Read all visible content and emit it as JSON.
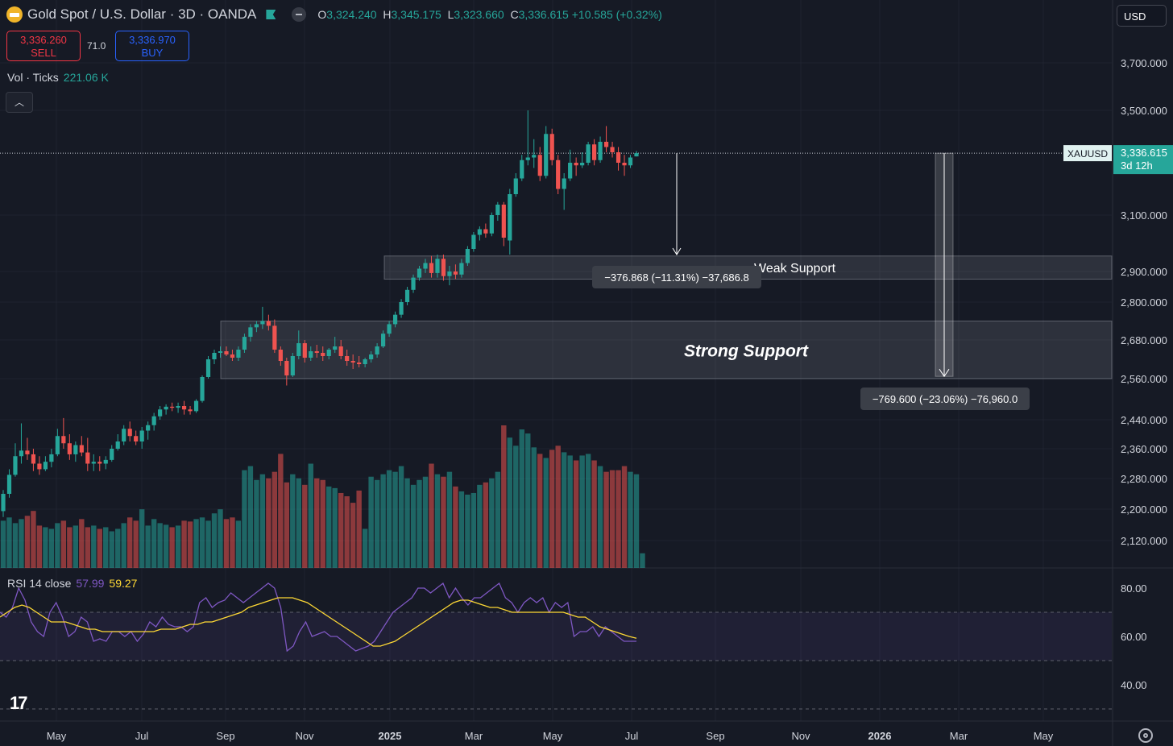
{
  "header": {
    "symbol": "Gold Spot",
    "quote": "U.S. Dollar",
    "interval": "3D",
    "exchange": "OANDA",
    "ohlc": {
      "o_label": "O",
      "o": "3,324.240",
      "h_label": "H",
      "h": "3,345.175",
      "l_label": "L",
      "l": "3,323.660",
      "c_label": "C",
      "c": "3,336.615",
      "change": "+10.585 (+0.32%)"
    }
  },
  "trade": {
    "sell_price": "3,336.260",
    "sell_label": "SELL",
    "buy_price": "3,336.970",
    "buy_label": "BUY",
    "spread": "71.0"
  },
  "volume": {
    "label": "Vol · Ticks",
    "value": "221.06 K"
  },
  "currency": "USD",
  "price_label": {
    "symbol": "XAUUSD",
    "price": "3,336.615",
    "countdown": "3d 12h"
  },
  "price_axis": [
    "3,700.000",
    "3,500.000",
    "3,100.000",
    "2,900.000",
    "2,800.000",
    "2,680.000",
    "2,560.000",
    "2,440.000",
    "2,360.000",
    "2,280.000",
    "2,200.000",
    "2,120.000"
  ],
  "time_axis": [
    "May",
    "Jul",
    "Sep",
    "Nov",
    "2025",
    "Mar",
    "May",
    "Jul",
    "Sep",
    "Nov",
    "2026",
    "Mar",
    "May"
  ],
  "zones": [
    {
      "label": "Weak Support",
      "low": 2875,
      "high": 2955
    },
    {
      "label": "Strong Support",
      "low": 2560,
      "high": 2740
    }
  ],
  "measures": [
    {
      "text": "−376.868 (−11.31%) −37,686.8",
      "from": 3336.6,
      "to": 2960
    },
    {
      "text": "−769.600 (−23.06%) −76,960.0",
      "from": 3336.6,
      "to": 2567
    }
  ],
  "rsi": {
    "label": "RSI 14 close",
    "value": "57.99",
    "ma": "59.27",
    "axis": [
      "80.00",
      "60.00",
      "40.00"
    ],
    "upper": 70,
    "lower": 50
  },
  "colors": {
    "up": "#26a69a",
    "down": "#ef5350",
    "rsi": "#7e57c2",
    "rsi_ma": "#fdd835",
    "accent": "#2962ff"
  },
  "chart_data": {
    "type": "candlestick",
    "candles": [
      {
        "o": 2195,
        "h": 2250,
        "l": 2180,
        "c": 2240
      },
      {
        "o": 2240,
        "h": 2305,
        "l": 2230,
        "c": 2290
      },
      {
        "o": 2290,
        "h": 2375,
        "l": 2285,
        "c": 2340
      },
      {
        "o": 2340,
        "h": 2430,
        "l": 2320,
        "c": 2355
      },
      {
        "o": 2355,
        "h": 2390,
        "l": 2330,
        "c": 2345
      },
      {
        "o": 2345,
        "h": 2360,
        "l": 2300,
        "c": 2320
      },
      {
        "o": 2320,
        "h": 2340,
        "l": 2290,
        "c": 2305
      },
      {
        "o": 2305,
        "h": 2340,
        "l": 2300,
        "c": 2325
      },
      {
        "o": 2325,
        "h": 2360,
        "l": 2310,
        "c": 2345
      },
      {
        "o": 2345,
        "h": 2415,
        "l": 2340,
        "c": 2395
      },
      {
        "o": 2395,
        "h": 2445,
        "l": 2360,
        "c": 2375
      },
      {
        "o": 2375,
        "h": 2400,
        "l": 2330,
        "c": 2345
      },
      {
        "o": 2345,
        "h": 2380,
        "l": 2325,
        "c": 2370
      },
      {
        "o": 2370,
        "h": 2395,
        "l": 2340,
        "c": 2350
      },
      {
        "o": 2350,
        "h": 2390,
        "l": 2300,
        "c": 2320
      },
      {
        "o": 2320,
        "h": 2345,
        "l": 2300,
        "c": 2325
      },
      {
        "o": 2325,
        "h": 2340,
        "l": 2300,
        "c": 2320
      },
      {
        "o": 2320,
        "h": 2340,
        "l": 2305,
        "c": 2330
      },
      {
        "o": 2330,
        "h": 2370,
        "l": 2325,
        "c": 2360
      },
      {
        "o": 2360,
        "h": 2400,
        "l": 2355,
        "c": 2380
      },
      {
        "o": 2380,
        "h": 2425,
        "l": 2370,
        "c": 2415
      },
      {
        "o": 2415,
        "h": 2435,
        "l": 2380,
        "c": 2395
      },
      {
        "o": 2395,
        "h": 2410,
        "l": 2370,
        "c": 2380
      },
      {
        "o": 2380,
        "h": 2420,
        "l": 2360,
        "c": 2410
      },
      {
        "o": 2410,
        "h": 2435,
        "l": 2385,
        "c": 2425
      },
      {
        "o": 2425,
        "h": 2460,
        "l": 2410,
        "c": 2450
      },
      {
        "o": 2450,
        "h": 2480,
        "l": 2440,
        "c": 2470
      },
      {
        "o": 2470,
        "h": 2485,
        "l": 2455,
        "c": 2478
      },
      {
        "o": 2478,
        "h": 2490,
        "l": 2465,
        "c": 2475
      },
      {
        "o": 2475,
        "h": 2490,
        "l": 2460,
        "c": 2480
      },
      {
        "o": 2480,
        "h": 2495,
        "l": 2455,
        "c": 2470
      },
      {
        "o": 2470,
        "h": 2480,
        "l": 2455,
        "c": 2465
      },
      {
        "o": 2465,
        "h": 2500,
        "l": 2460,
        "c": 2495
      },
      {
        "o": 2495,
        "h": 2570,
        "l": 2490,
        "c": 2565
      },
      {
        "o": 2565,
        "h": 2630,
        "l": 2560,
        "c": 2620
      },
      {
        "o": 2620,
        "h": 2650,
        "l": 2605,
        "c": 2640
      },
      {
        "o": 2640,
        "h": 2660,
        "l": 2625,
        "c": 2645
      },
      {
        "o": 2645,
        "h": 2660,
        "l": 2630,
        "c": 2635
      },
      {
        "o": 2635,
        "h": 2650,
        "l": 2615,
        "c": 2625
      },
      {
        "o": 2625,
        "h": 2660,
        "l": 2615,
        "c": 2650
      },
      {
        "o": 2650,
        "h": 2700,
        "l": 2640,
        "c": 2690
      },
      {
        "o": 2690,
        "h": 2730,
        "l": 2675,
        "c": 2720
      },
      {
        "o": 2720,
        "h": 2740,
        "l": 2705,
        "c": 2730
      },
      {
        "o": 2730,
        "h": 2785,
        "l": 2715,
        "c": 2740
      },
      {
        "o": 2740,
        "h": 2760,
        "l": 2710,
        "c": 2725
      },
      {
        "o": 2725,
        "h": 2745,
        "l": 2640,
        "c": 2650
      },
      {
        "o": 2650,
        "h": 2660,
        "l": 2600,
        "c": 2615
      },
      {
        "o": 2615,
        "h": 2625,
        "l": 2540,
        "c": 2570
      },
      {
        "o": 2570,
        "h": 2640,
        "l": 2565,
        "c": 2630
      },
      {
        "o": 2630,
        "h": 2710,
        "l": 2620,
        "c": 2670
      },
      {
        "o": 2670,
        "h": 2680,
        "l": 2610,
        "c": 2625
      },
      {
        "o": 2625,
        "h": 2660,
        "l": 2615,
        "c": 2645
      },
      {
        "o": 2645,
        "h": 2665,
        "l": 2625,
        "c": 2640
      },
      {
        "o": 2640,
        "h": 2660,
        "l": 2615,
        "c": 2630
      },
      {
        "o": 2630,
        "h": 2655,
        "l": 2620,
        "c": 2650
      },
      {
        "o": 2650,
        "h": 2690,
        "l": 2640,
        "c": 2660
      },
      {
        "o": 2660,
        "h": 2680,
        "l": 2620,
        "c": 2630
      },
      {
        "o": 2630,
        "h": 2650,
        "l": 2600,
        "c": 2615
      },
      {
        "o": 2615,
        "h": 2635,
        "l": 2590,
        "c": 2610
      },
      {
        "o": 2610,
        "h": 2630,
        "l": 2595,
        "c": 2605
      },
      {
        "o": 2605,
        "h": 2625,
        "l": 2595,
        "c": 2620
      },
      {
        "o": 2620,
        "h": 2645,
        "l": 2610,
        "c": 2635
      },
      {
        "o": 2635,
        "h": 2670,
        "l": 2625,
        "c": 2660
      },
      {
        "o": 2660,
        "h": 2710,
        "l": 2655,
        "c": 2700
      },
      {
        "o": 2700,
        "h": 2740,
        "l": 2690,
        "c": 2730
      },
      {
        "o": 2730,
        "h": 2770,
        "l": 2720,
        "c": 2760
      },
      {
        "o": 2760,
        "h": 2810,
        "l": 2750,
        "c": 2800
      },
      {
        "o": 2800,
        "h": 2850,
        "l": 2790,
        "c": 2840
      },
      {
        "o": 2840,
        "h": 2890,
        "l": 2830,
        "c": 2880
      },
      {
        "o": 2880,
        "h": 2920,
        "l": 2870,
        "c": 2910
      },
      {
        "o": 2910,
        "h": 2945,
        "l": 2895,
        "c": 2930
      },
      {
        "o": 2930,
        "h": 2955,
        "l": 2880,
        "c": 2895
      },
      {
        "o": 2895,
        "h": 2960,
        "l": 2880,
        "c": 2945
      },
      {
        "o": 2945,
        "h": 2960,
        "l": 2870,
        "c": 2885
      },
      {
        "o": 2885,
        "h": 2920,
        "l": 2855,
        "c": 2900
      },
      {
        "o": 2900,
        "h": 2925,
        "l": 2875,
        "c": 2890
      },
      {
        "o": 2890,
        "h": 2945,
        "l": 2880,
        "c": 2930
      },
      {
        "o": 2930,
        "h": 2990,
        "l": 2920,
        "c": 2980
      },
      {
        "o": 2980,
        "h": 3040,
        "l": 2970,
        "c": 3030
      },
      {
        "o": 3030,
        "h": 3060,
        "l": 3010,
        "c": 3050
      },
      {
        "o": 3050,
        "h": 3070,
        "l": 3020,
        "c": 3035
      },
      {
        "o": 3035,
        "h": 3110,
        "l": 3025,
        "c": 3100
      },
      {
        "o": 3100,
        "h": 3150,
        "l": 3080,
        "c": 3140
      },
      {
        "o": 3140,
        "h": 3150,
        "l": 2990,
        "c": 3020
      },
      {
        "o": 3010,
        "h": 3200,
        "l": 2960,
        "c": 3180
      },
      {
        "o": 3180,
        "h": 3260,
        "l": 3170,
        "c": 3240
      },
      {
        "o": 3240,
        "h": 3330,
        "l": 3230,
        "c": 3310
      },
      {
        "o": 3310,
        "h": 3500,
        "l": 3290,
        "c": 3320
      },
      {
        "o": 3320,
        "h": 3390,
        "l": 3280,
        "c": 3330
      },
      {
        "o": 3330,
        "h": 3360,
        "l": 3230,
        "c": 3250
      },
      {
        "o": 3250,
        "h": 3440,
        "l": 3240,
        "c": 3410
      },
      {
        "o": 3410,
        "h": 3430,
        "l": 3290,
        "c": 3310
      },
      {
        "o": 3310,
        "h": 3330,
        "l": 3180,
        "c": 3200
      },
      {
        "o": 3200,
        "h": 3260,
        "l": 3120,
        "c": 3240
      },
      {
        "o": 3240,
        "h": 3350,
        "l": 3230,
        "c": 3300
      },
      {
        "o": 3300,
        "h": 3320,
        "l": 3250,
        "c": 3290
      },
      {
        "o": 3290,
        "h": 3340,
        "l": 3280,
        "c": 3300
      },
      {
        "o": 3300,
        "h": 3380,
        "l": 3290,
        "c": 3370
      },
      {
        "o": 3370,
        "h": 3390,
        "l": 3290,
        "c": 3310
      },
      {
        "o": 3310,
        "h": 3400,
        "l": 3300,
        "c": 3380
      },
      {
        "o": 3380,
        "h": 3440,
        "l": 3340,
        "c": 3360
      },
      {
        "o": 3360,
        "h": 3380,
        "l": 3320,
        "c": 3340
      },
      {
        "o": 3340,
        "h": 3360,
        "l": 3270,
        "c": 3300
      },
      {
        "o": 3300,
        "h": 3330,
        "l": 3250,
        "c": 3290
      },
      {
        "o": 3290,
        "h": 3330,
        "l": 3280,
        "c": 3320
      },
      {
        "o": 3324.24,
        "h": 3345.175,
        "l": 3323.66,
        "c": 3336.615
      }
    ],
    "volume": [
      58,
      62,
      55,
      60,
      64,
      70,
      52,
      50,
      48,
      55,
      58,
      50,
      52,
      60,
      50,
      52,
      48,
      50,
      45,
      48,
      55,
      62,
      58,
      72,
      52,
      60,
      55,
      53,
      50,
      52,
      58,
      57,
      60,
      62,
      58,
      67,
      72,
      60,
      62,
      58,
      120,
      125,
      108,
      115,
      110,
      118,
      140,
      105,
      115,
      110,
      102,
      128,
      110,
      108,
      100,
      98,
      92,
      88,
      80,
      95,
      48,
      112,
      108,
      115,
      120,
      118,
      125,
      110,
      102,
      108,
      112,
      128,
      115,
      112,
      118,
      100,
      94,
      90,
      92,
      102,
      105,
      110,
      118,
      175,
      160,
      150,
      170,
      165,
      148,
      140,
      135,
      145,
      150,
      142,
      138,
      132,
      138,
      140,
      132,
      125,
      118,
      120,
      120,
      125,
      118,
      115,
      18
    ],
    "rsi": [
      70,
      68,
      72,
      80,
      75,
      66,
      62,
      60,
      70,
      74,
      68,
      60,
      62,
      68,
      66,
      58,
      59,
      58,
      62,
      62,
      60,
      62,
      58,
      61,
      66,
      64,
      68,
      65,
      64,
      64,
      62,
      64,
      74,
      76,
      72,
      74,
      75,
      78,
      76,
      74,
      76,
      78,
      80,
      82,
      80,
      72,
      54,
      56,
      62,
      66,
      60,
      61,
      62,
      60,
      60,
      58,
      56,
      54,
      55,
      56,
      58,
      62,
      66,
      70,
      72,
      74,
      76,
      80,
      80,
      78,
      80,
      82,
      76,
      80,
      76,
      73,
      76,
      76,
      78,
      80,
      82,
      76,
      74,
      70,
      74,
      76,
      74,
      76,
      70,
      74,
      72,
      74,
      60,
      62,
      62,
      64,
      60,
      64,
      62,
      60,
      58,
      58,
      58
    ],
    "rsi_ma": [
      68,
      70,
      72,
      73,
      72,
      70,
      68,
      66,
      66,
      66,
      65,
      64,
      63,
      63,
      62,
      62,
      62,
      62,
      62,
      62,
      62,
      62,
      63,
      63,
      63,
      64,
      65,
      65,
      66,
      66,
      67,
      68,
      69,
      70,
      72,
      73,
      74,
      75,
      76,
      76,
      76,
      75,
      74,
      72,
      70,
      68,
      66,
      64,
      62,
      60,
      58,
      56,
      56,
      57,
      58,
      60,
      62,
      64,
      66,
      68,
      70,
      72,
      74,
      75,
      75,
      74,
      73,
      72,
      72,
      71,
      70,
      70,
      70,
      70,
      70,
      70,
      70,
      70,
      69,
      68,
      68,
      66,
      64,
      63,
      62,
      61,
      60,
      59.27
    ],
    "x_axis": [
      "May",
      "Jul",
      "Sep",
      "Nov",
      "2025",
      "Mar",
      "May",
      "Jul",
      "Sep",
      "Nov",
      "2026",
      "Mar",
      "May"
    ]
  }
}
